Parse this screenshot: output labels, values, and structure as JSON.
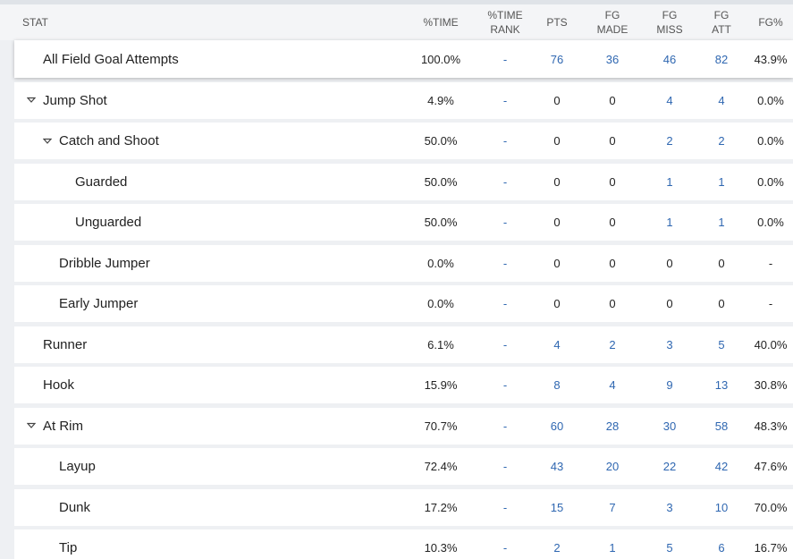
{
  "header": {
    "columns": [
      [
        "STAT"
      ],
      [
        "%TIME"
      ],
      [
        "%TIME",
        "RANK"
      ],
      [
        "PTS"
      ],
      [
        "FG",
        "MADE"
      ],
      [
        "FG",
        "MISS"
      ],
      [
        "FG",
        "ATT"
      ],
      [
        "FG%"
      ]
    ]
  },
  "table": {
    "total": {
      "label": "All Field Goal Attempts",
      "cells": [
        "100.0%",
        "-",
        "76",
        "36",
        "46",
        "82",
        "43.9%"
      ]
    },
    "rows": [
      {
        "label": "Jump Shot",
        "cells": [
          "4.9%",
          "-",
          "0",
          "0",
          "4",
          "4",
          "0.0%"
        ],
        "children": [
          {
            "label": "Catch and Shoot",
            "cells": [
              "50.0%",
              "-",
              "0",
              "0",
              "2",
              "2",
              "0.0%"
            ],
            "children": [
              {
                "label": "Guarded",
                "cells": [
                  "50.0%",
                  "-",
                  "0",
                  "0",
                  "1",
                  "1",
                  "0.0%"
                ]
              },
              {
                "label": "Unguarded",
                "cells": [
                  "50.0%",
                  "-",
                  "0",
                  "0",
                  "1",
                  "1",
                  "0.0%"
                ]
              }
            ]
          },
          {
            "label": "Dribble Jumper",
            "cells": [
              "0.0%",
              "-",
              "0",
              "0",
              "0",
              "0",
              "-"
            ]
          },
          {
            "label": "Early Jumper",
            "cells": [
              "0.0%",
              "-",
              "0",
              "0",
              "0",
              "0",
              "-"
            ]
          }
        ]
      },
      {
        "label": "Runner",
        "cells": [
          "6.1%",
          "-",
          "4",
          "2",
          "3",
          "5",
          "40.0%"
        ]
      },
      {
        "label": "Hook",
        "cells": [
          "15.9%",
          "-",
          "8",
          "4",
          "9",
          "13",
          "30.8%"
        ]
      },
      {
        "label": "At Rim",
        "cells": [
          "70.7%",
          "-",
          "60",
          "28",
          "30",
          "58",
          "48.3%"
        ],
        "children": [
          {
            "label": "Layup",
            "cells": [
              "72.4%",
              "-",
              "43",
              "20",
              "22",
              "42",
              "47.6%"
            ]
          },
          {
            "label": "Dunk",
            "cells": [
              "17.2%",
              "-",
              "15",
              "7",
              "3",
              "10",
              "70.0%"
            ]
          },
          {
            "label": "Tip",
            "cells": [
              "10.3%",
              "-",
              "2",
              "1",
              "5",
              "6",
              "16.7%"
            ]
          }
        ]
      }
    ]
  }
}
